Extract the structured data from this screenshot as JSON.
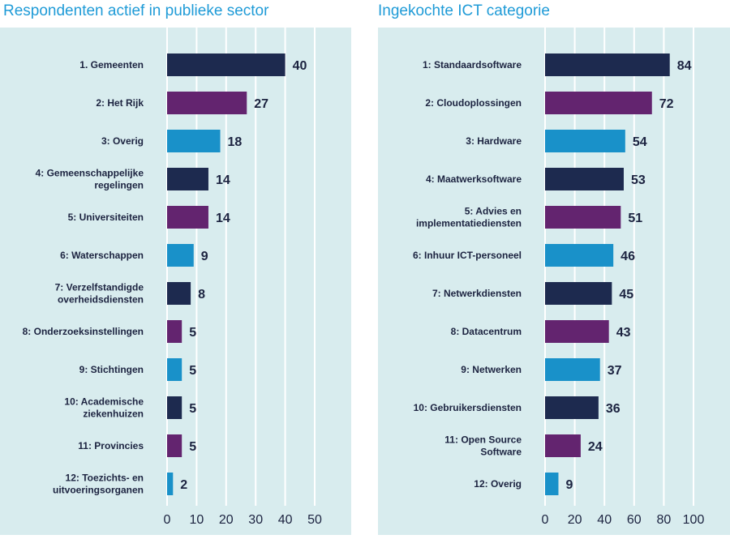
{
  "colors": {
    "panel_bg": "#d8ecee",
    "grid": "#ffffff",
    "title": "#1f9bd7",
    "text": "#1c2340",
    "bar_cycle": [
      "#1d2a4f",
      "#63246f",
      "#1991c9"
    ]
  },
  "chart_data": [
    {
      "type": "bar",
      "orientation": "horizontal",
      "title": "Respondenten actief in publieke sector",
      "categories": [
        [
          "1. Gemeenten"
        ],
        [
          "2: Het Rijk"
        ],
        [
          "3: Overig"
        ],
        [
          "4: Gemeenschappelijke",
          "regelingen"
        ],
        [
          "5: Universiteiten"
        ],
        [
          "6: Waterschappen"
        ],
        [
          "7: Verzelfstandigde",
          "overheidsdiensten"
        ],
        [
          "8: Onderzoeksinstellingen"
        ],
        [
          "9: Stichtingen"
        ],
        [
          "10: Academische",
          "ziekenhuizen"
        ],
        [
          "11: Provincies"
        ],
        [
          "12: Toezichts- en",
          "uitvoeringsorganen"
        ]
      ],
      "values": [
        40,
        27,
        18,
        14,
        14,
        9,
        8,
        5,
        5,
        5,
        5,
        2
      ],
      "xlim": [
        0,
        50
      ],
      "xticks": [
        0,
        10,
        20,
        30,
        40,
        50
      ],
      "grid": true
    },
    {
      "type": "bar",
      "orientation": "horizontal",
      "title": "Ingekochte ICT categorie",
      "categories": [
        [
          "1: Standaardsoftware"
        ],
        [
          "2: Cloudoplossingen"
        ],
        [
          "3: Hardware"
        ],
        [
          "4: Maatwerksoftware"
        ],
        [
          "5: Advies en",
          "implementatiediensten"
        ],
        [
          "6: Inhuur ICT-personeel"
        ],
        [
          "7: Netwerkdiensten"
        ],
        [
          "8: Datacentrum"
        ],
        [
          "9: Netwerken"
        ],
        [
          "10: Gebruikersdiensten"
        ],
        [
          "11: Open Source",
          "Software"
        ],
        [
          "12: Overig"
        ]
      ],
      "values": [
        84,
        72,
        54,
        53,
        51,
        46,
        45,
        43,
        37,
        36,
        24,
        9
      ],
      "xlim": [
        0,
        100
      ],
      "xticks": [
        0,
        20,
        40,
        60,
        80,
        100
      ],
      "grid": true
    }
  ]
}
